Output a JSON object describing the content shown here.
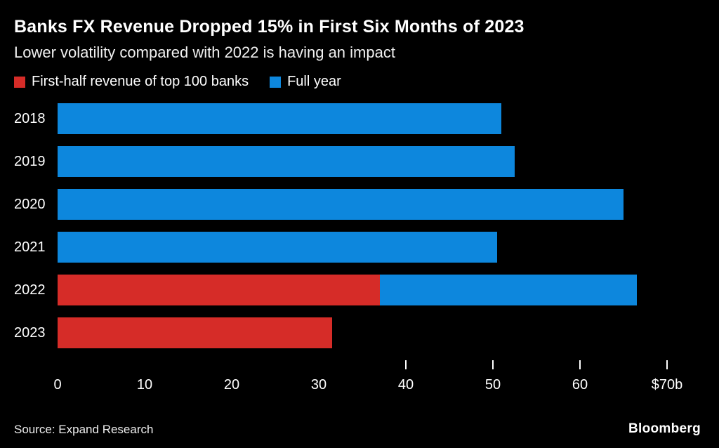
{
  "chart_data": {
    "type": "bar",
    "orientation": "horizontal",
    "title": "Banks FX Revenue Dropped 15% in First Six Months of 2023",
    "subtitle": "Lower volatility compared with 2022 is having an impact",
    "legend": [
      {
        "label": "First-half revenue of top 100 banks",
        "color": "#d62c28"
      },
      {
        "label": "Full year",
        "color": "#0d87dd"
      }
    ],
    "categories": [
      "2018",
      "2019",
      "2020",
      "2021",
      "2022",
      "2023"
    ],
    "series": [
      {
        "name": "First-half revenue of top 100 banks",
        "values": [
          null,
          null,
          null,
          null,
          37,
          31.5
        ]
      },
      {
        "name": "Full year",
        "values": [
          51,
          52.5,
          65,
          50.5,
          66.5,
          null
        ]
      }
    ],
    "xlim": [
      0,
      70
    ],
    "x_tick_values": [
      0,
      10,
      20,
      30,
      40,
      50,
      60,
      70
    ],
    "x_tick_labels": [
      "0",
      "10",
      "20",
      "30",
      "40",
      "50",
      "60",
      "$70b"
    ],
    "axis_tick_marks": [
      40,
      50,
      60,
      70
    ],
    "grid": false,
    "legend_position": "top",
    "source": "Source: Expand Research",
    "brand": "Bloomberg"
  }
}
